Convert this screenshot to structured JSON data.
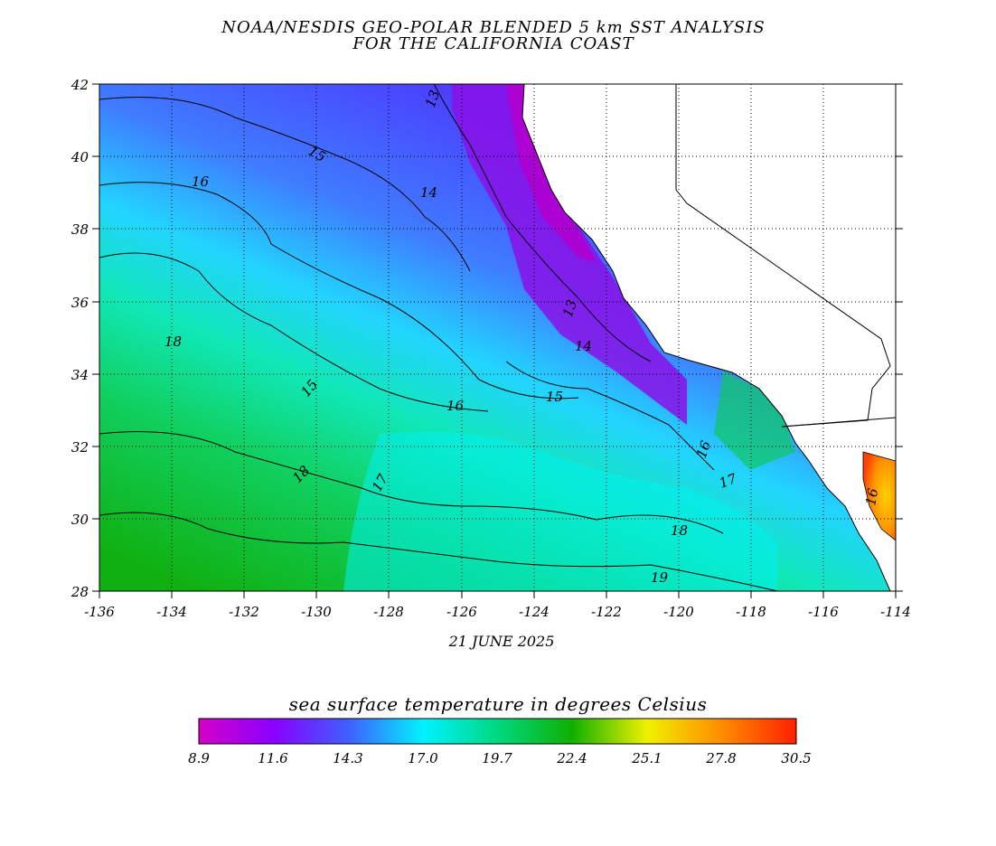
{
  "title_line1": "NOAA/NESDIS GEO-POLAR BLENDED 5 km SST ANALYSIS",
  "title_line2": "FOR THE CALIFORNIA COAST",
  "date": "21 JUNE 2025",
  "colorbar": {
    "title": "sea surface temperature in degrees Celsius",
    "ticks": [
      "8.9",
      "11.6",
      "14.3",
      "17.0",
      "19.7",
      "22.4",
      "25.1",
      "27.8",
      "30.5"
    ],
    "colors": [
      "#d400c8",
      "#8a00ff",
      "#3f5fff",
      "#00f2ff",
      "#00d880",
      "#10b000",
      "#f0f000",
      "#ff8c00",
      "#ff2000"
    ]
  },
  "map": {
    "x_ticks": [
      "-136",
      "-134",
      "-132",
      "-130",
      "-128",
      "-126",
      "-124",
      "-122",
      "-120",
      "-118",
      "-116",
      "-114"
    ],
    "y_ticks": [
      "42",
      "40",
      "38",
      "36",
      "34",
      "32",
      "30",
      "28"
    ],
    "contour_labels": [
      "13",
      "15",
      "16",
      "14",
      "18",
      "15",
      "16",
      "14",
      "13",
      "15",
      "16",
      "17",
      "18",
      "17",
      "18",
      "19",
      "16"
    ],
    "land_color": "#ffffff"
  }
}
